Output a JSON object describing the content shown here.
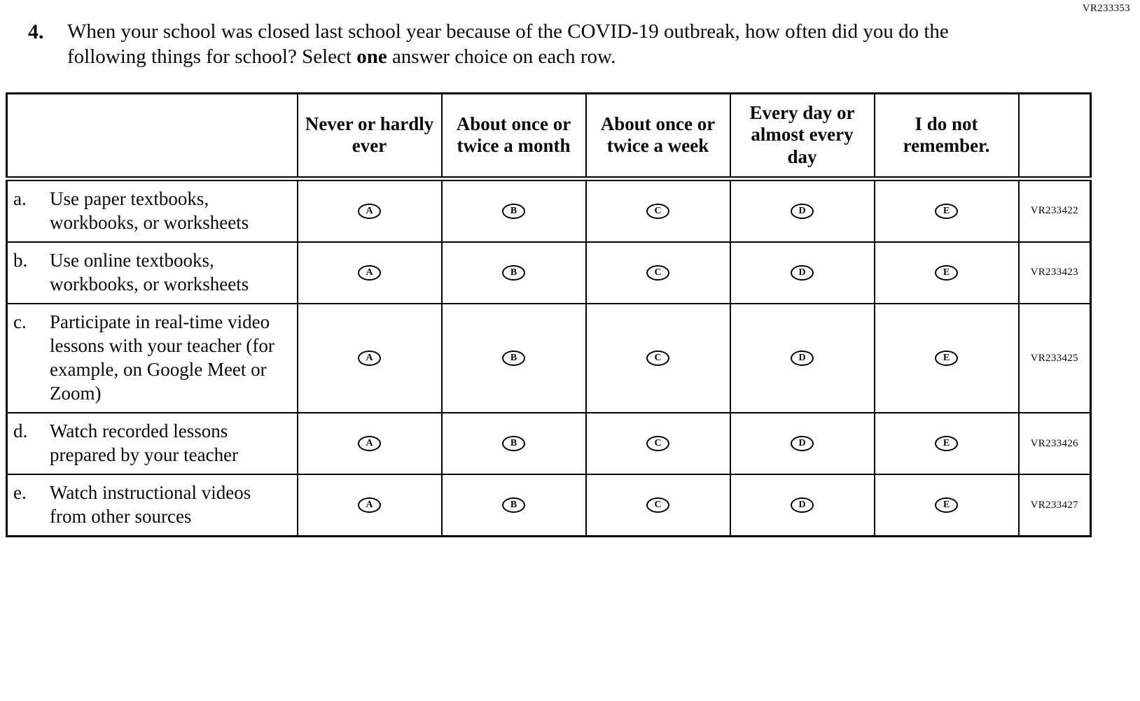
{
  "page": {
    "corner_code": "VR233353"
  },
  "question": {
    "number": "4.",
    "text_before_bold": "When your school was closed last school year because of the COVID-19 outbreak, how often did you do the following things for school?  Select ",
    "bold_word": "one",
    "text_after_bold": " answer choice on each row."
  },
  "table": {
    "column_headers": [
      "Never or hardly ever",
      "About once or twice a month",
      "About once or twice a week",
      "Every day or almost every day",
      "I do not remember."
    ],
    "options": [
      "A",
      "B",
      "C",
      "D",
      "E"
    ],
    "rows": [
      {
        "letter": "a.",
        "label": "Use paper textbooks, workbooks, or worksheets",
        "code": "VR233422"
      },
      {
        "letter": "b.",
        "label": "Use online textbooks, workbooks, or worksheets",
        "code": "VR233423"
      },
      {
        "letter": "c.",
        "label": "Participate in real-time video lessons with your teacher (for example, on Google Meet or Zoom)",
        "code": "VR233425"
      },
      {
        "letter": "d.",
        "label": "Watch recorded lessons prepared by your teacher",
        "code": "VR233426"
      },
      {
        "letter": "e.",
        "label": "Watch instructional videos from other sources",
        "code": "VR233427"
      }
    ]
  }
}
